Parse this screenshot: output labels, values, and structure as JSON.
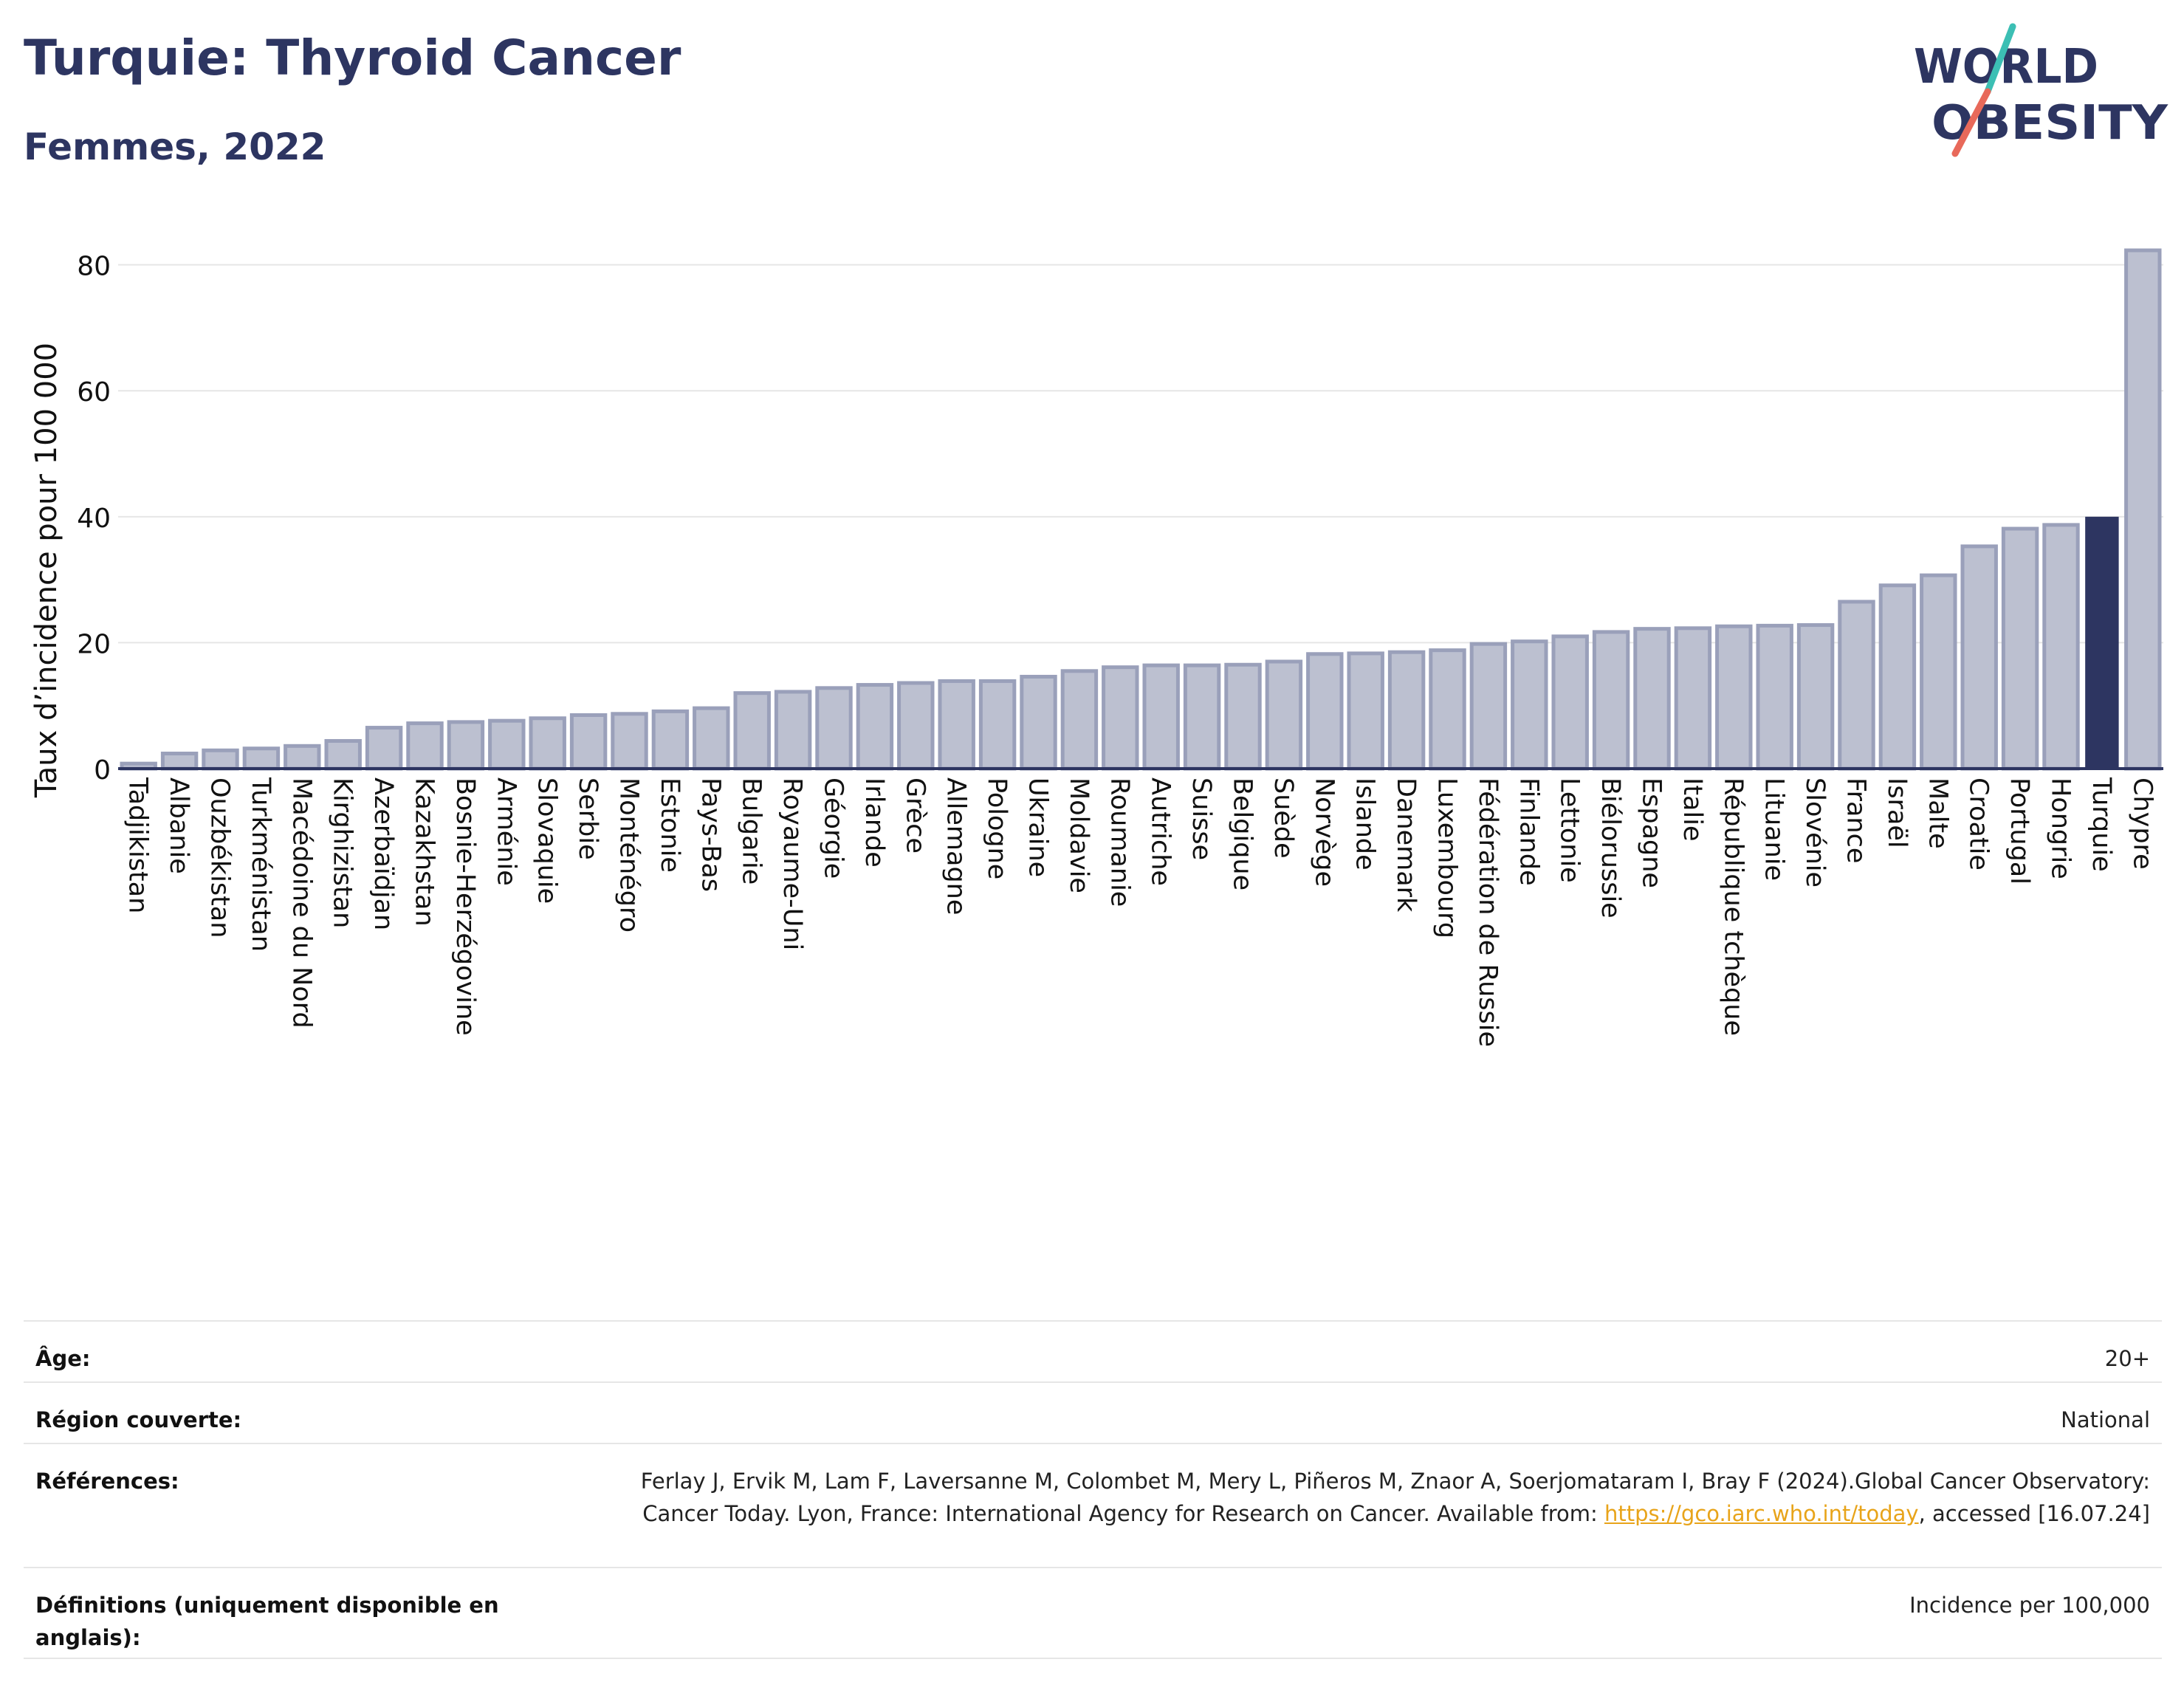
{
  "header": {
    "title": "Turquie: Thyroid Cancer",
    "subtitle": "Femmes, 2022"
  },
  "logo": {
    "line1": "WORLD",
    "line2": "OBESITY",
    "colors": {
      "text": "#2d3561",
      "slash_top": "#3cbfb4",
      "slash_bottom": "#e8695a"
    }
  },
  "colors": {
    "bar": "#bcc0d0",
    "bar_border": "#9aa0ba",
    "highlight": "#2d3561",
    "axis": "#2d3561",
    "grid": "#e6e6e6",
    "link": "#e8a41a"
  },
  "chart_data": {
    "type": "bar",
    "title": "Turquie: Thyroid Cancer",
    "subtitle": "Femmes, 2022",
    "xlabel": "",
    "ylabel": "Taux d’incidence pour 100 000",
    "ylim": [
      0,
      85
    ],
    "yticks": [
      0,
      20,
      40,
      60,
      80
    ],
    "grid": true,
    "highlight": "Turquie",
    "categories": [
      "Tadjikistan",
      "Albanie",
      "Ouzbékistan",
      "Turkménistan",
      "Macédoine du Nord",
      "Kirghizistan",
      "Azerbaïdjan",
      "Kazakhstan",
      "Bosnie-Herzégovine",
      "Arménie",
      "Slovaquie",
      "Serbie",
      "Monténégro",
      "Estonie",
      "Pays-Bas",
      "Bulgarie",
      "Royaume-Uni",
      "Géorgie",
      "Irlande",
      "Grèce",
      "Allemagne",
      "Pologne",
      "Ukraine",
      "Moldavie",
      "Roumanie",
      "Autriche",
      "Suisse",
      "Belgique",
      "Suède",
      "Norvège",
      "Islande",
      "Danemark",
      "Luxembourg",
      "Fédération de Russie",
      "Finlande",
      "Lettonie",
      "Biélorussie",
      "Espagne",
      "Italie",
      "République tchèque",
      "Lituanie",
      "Slovénie",
      "France",
      "Israël",
      "Malte",
      "Croatie",
      "Portugal",
      "Hongrie",
      "Turquie",
      "Chypre"
    ],
    "values": [
      0.8,
      2.4,
      2.9,
      3.2,
      3.6,
      4.4,
      6.5,
      7.2,
      7.4,
      7.6,
      8.0,
      8.5,
      8.7,
      9.1,
      9.6,
      12.0,
      12.2,
      12.8,
      13.3,
      13.6,
      13.9,
      13.9,
      14.6,
      15.5,
      16.1,
      16.4,
      16.4,
      16.5,
      17.0,
      18.2,
      18.3,
      18.5,
      18.8,
      19.8,
      20.2,
      21.0,
      21.7,
      22.2,
      22.3,
      22.6,
      22.7,
      22.8,
      26.5,
      29.1,
      30.7,
      35.3,
      38.1,
      38.7,
      40.0,
      82.3
    ]
  },
  "info": {
    "age_label": "Âge:",
    "age_value": "20+",
    "region_label": "Région couverte:",
    "region_value": "National",
    "references_label": "Références:",
    "references_text": "Ferlay J, Ervik M, Lam F, Laversanne M, Colombet M, Mery L, Piñeros M, Znaor A, Soerjomataram I, Bray F (2024).Global Cancer Observatory: Cancer Today. Lyon, France: International Agency for Research on Cancer. Available from: ",
    "references_link": "https://gco.iarc.who.int/today",
    "references_suffix": ", accessed [16.07.24]",
    "definitions_label": "Définitions (uniquement disponible en anglais):",
    "definitions_value": "Incidence per 100,000"
  }
}
